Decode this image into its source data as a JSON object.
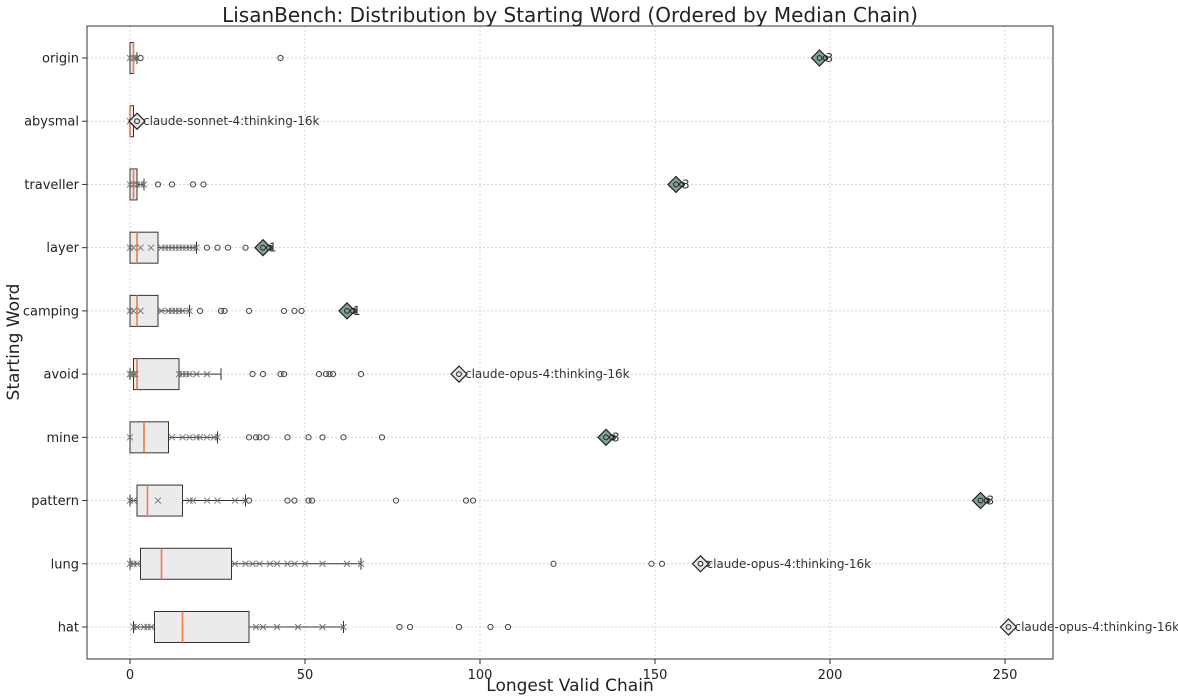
{
  "chart_data": {
    "type": "boxplot",
    "title": "LisanBench: Distribution by Starting Word (Ordered by Median Chain)",
    "xlabel": "Longest Valid Chain",
    "ylabel": "Starting Word",
    "xlim": [
      -12,
      264
    ],
    "xticks": [
      0,
      50,
      100,
      150,
      200,
      250
    ],
    "grid": true,
    "colors": {
      "box_fill": "#ebebeb",
      "median": "#f07b48",
      "best_highlight": "#7fa393",
      "best_plain": "#e6e6e6"
    },
    "categories": [
      "origin",
      "abysmal",
      "traveller",
      "layer",
      "camping",
      "avoid",
      "mine",
      "pattern",
      "lung",
      "hat"
    ],
    "boxes": [
      {
        "word": "origin",
        "whislo": 0,
        "q1": 0,
        "med": 1,
        "q3": 1,
        "whishi": 2,
        "fliers": [
          3,
          43
        ],
        "points": [
          0,
          1,
          2
        ]
      },
      {
        "word": "abysmal",
        "whislo": 0,
        "q1": 0,
        "med": 0,
        "q3": 1,
        "whishi": 1,
        "fliers": [],
        "points": [
          0,
          1
        ]
      },
      {
        "word": "traveller",
        "whislo": 0,
        "q1": 0,
        "med": 1,
        "q3": 2,
        "whishi": 4,
        "fliers": [
          8,
          12,
          18,
          21
        ],
        "points": [
          0,
          1,
          2,
          3,
          4
        ]
      },
      {
        "word": "layer",
        "whislo": 0,
        "q1": 0,
        "med": 2,
        "q3": 8,
        "whishi": 19,
        "fliers": [
          22,
          25,
          28,
          33,
          40
        ],
        "points": [
          0,
          1,
          3,
          6,
          9,
          10,
          11,
          12,
          13,
          14,
          15,
          16,
          17,
          18,
          19
        ]
      },
      {
        "word": "camping",
        "whislo": 0,
        "q1": 0,
        "med": 2,
        "q3": 8,
        "whishi": 17,
        "fliers": [
          20,
          26,
          27,
          34,
          44,
          47,
          49,
          64
        ],
        "points": [
          0,
          1,
          3,
          9,
          11,
          12,
          13,
          14,
          15,
          17
        ]
      },
      {
        "word": "avoid",
        "whislo": 0,
        "q1": 1,
        "med": 2,
        "q3": 14,
        "whishi": 26,
        "fliers": [
          35,
          38,
          43,
          44,
          54,
          56,
          57,
          58,
          66
        ],
        "points": [
          0,
          0.5,
          1,
          1.5,
          14,
          15,
          16,
          17,
          19,
          22
        ]
      },
      {
        "word": "mine",
        "whislo": 0,
        "q1": 0,
        "med": 4,
        "q3": 11,
        "whishi": 25,
        "fliers": [
          34,
          36,
          37,
          39,
          45,
          51,
          55,
          61,
          72,
          138
        ],
        "points": [
          0,
          12,
          15,
          17,
          19,
          20,
          22,
          24,
          25
        ]
      },
      {
        "word": "pattern",
        "whislo": 0,
        "q1": 2,
        "med": 5,
        "q3": 15,
        "whishi": 33,
        "fliers": [
          34,
          45,
          47,
          51,
          52,
          76,
          96,
          98,
          245
        ],
        "points": [
          0,
          1,
          8,
          17,
          18,
          22,
          25,
          30,
          33
        ]
      },
      {
        "word": "lung",
        "whislo": 0,
        "q1": 3,
        "med": 9,
        "q3": 29,
        "whishi": 66,
        "fliers": [
          121,
          149,
          152,
          165
        ],
        "points": [
          0,
          1,
          2,
          30,
          33,
          35,
          37,
          40,
          42,
          45,
          47,
          50,
          55,
          62,
          66
        ]
      },
      {
        "word": "hat",
        "whislo": 1,
        "q1": 7,
        "med": 15,
        "q3": 34,
        "whishi": 61,
        "fliers": [
          77,
          80,
          94,
          103,
          108
        ],
        "points": [
          1,
          2,
          4,
          5,
          6,
          36,
          38,
          42,
          48,
          55,
          61
        ]
      }
    ],
    "best": [
      {
        "word": "origin",
        "value": 197,
        "label": "3",
        "highlight": true
      },
      {
        "word": "abysmal",
        "value": 2,
        "label": "claude-sonnet-4:thinking-16k",
        "highlight": false
      },
      {
        "word": "traveller",
        "value": 156,
        "label": "3",
        "highlight": true
      },
      {
        "word": "layer",
        "value": 38,
        "label": "1",
        "highlight": true
      },
      {
        "word": "camping",
        "value": 62,
        "label": "1",
        "highlight": true
      },
      {
        "word": "avoid",
        "value": 94,
        "label": "claude-opus-4:thinking-16k",
        "highlight": false
      },
      {
        "word": "mine",
        "value": 136,
        "label": "3",
        "highlight": true
      },
      {
        "word": "pattern",
        "value": 243,
        "label": "3",
        "highlight": true
      },
      {
        "word": "lung",
        "value": 163,
        "label": "claude-opus-4:thinking-16k",
        "highlight": false
      },
      {
        "word": "hat",
        "value": 251,
        "label": "claude-opus-4:thinking-16k",
        "highlight": false
      }
    ]
  }
}
